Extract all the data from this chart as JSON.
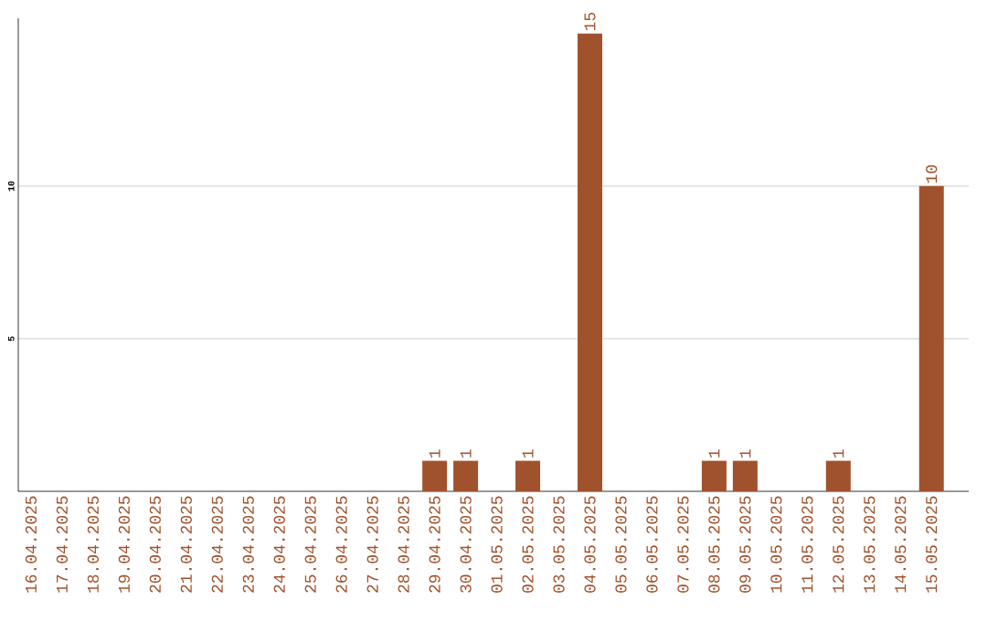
{
  "chart_data": {
    "type": "bar",
    "categories": [
      "16.04.2025",
      "17.04.2025",
      "18.04.2025",
      "19.04.2025",
      "20.04.2025",
      "21.04.2025",
      "22.04.2025",
      "23.04.2025",
      "24.04.2025",
      "25.04.2025",
      "26.04.2025",
      "27.04.2025",
      "28.04.2025",
      "29.04.2025",
      "30.04.2025",
      "01.05.2025",
      "02.05.2025",
      "03.05.2025",
      "04.05.2025",
      "05.05.2025",
      "06.05.2025",
      "07.05.2025",
      "08.05.2025",
      "09.05.2025",
      "10.05.2025",
      "11.05.2025",
      "12.05.2025",
      "13.05.2025",
      "14.05.2025",
      "15.05.2025"
    ],
    "values": [
      0,
      0,
      0,
      0,
      0,
      0,
      0,
      0,
      0,
      0,
      0,
      0,
      0,
      1,
      1,
      0,
      1,
      0,
      15,
      0,
      0,
      0,
      1,
      1,
      0,
      0,
      1,
      0,
      0,
      10
    ],
    "value_labels": [
      null,
      null,
      null,
      null,
      null,
      null,
      null,
      null,
      null,
      null,
      null,
      null,
      null,
      "1",
      "1",
      null,
      "1",
      null,
      "15",
      null,
      null,
      null,
      "1",
      "1",
      null,
      null,
      "1",
      null,
      null,
      "10"
    ],
    "color": "#a0522d",
    "ylim": [
      0,
      15.5
    ],
    "yticks": [
      5,
      10
    ],
    "grid": "y"
  }
}
